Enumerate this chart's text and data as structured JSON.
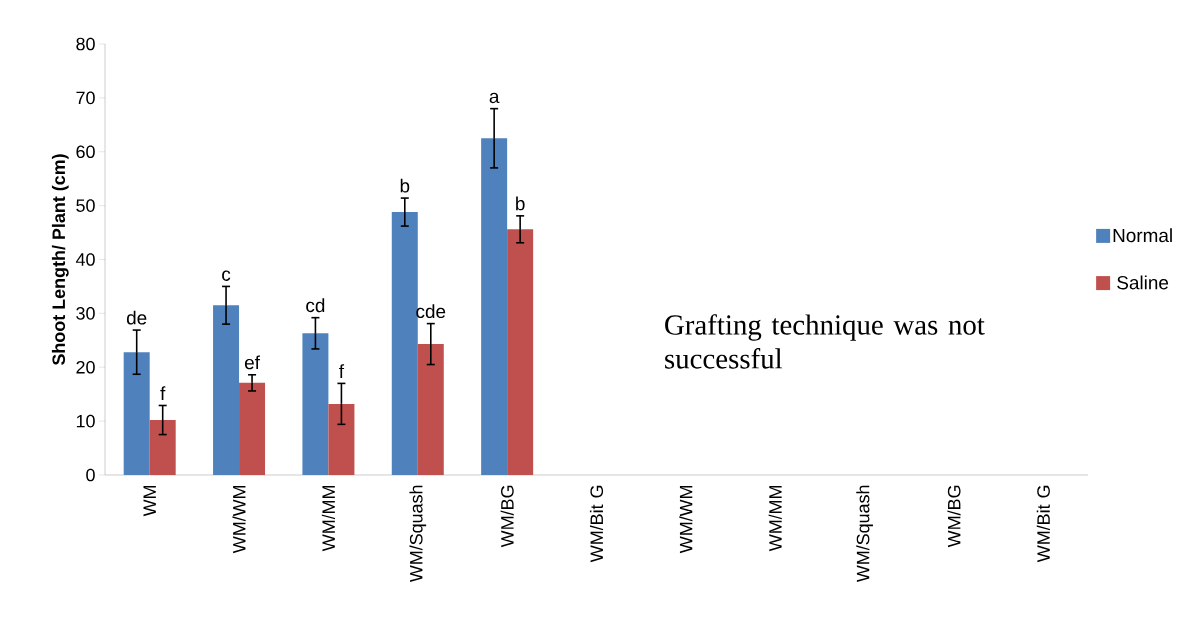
{
  "chart_data": {
    "type": "bar",
    "ylabel": "Shoot Length/ Plant (cm)",
    "categories": [
      "WM",
      "WM/WM",
      "WM/MM",
      "WM/Squash",
      "WM/BG",
      "WM/Bit G",
      "WM/WM",
      "WM/MM",
      "WM/Squash",
      "WM/BG",
      "WM/Bit G"
    ],
    "series": [
      {
        "name": "Normal",
        "color": "#4f81bd",
        "values": [
          22.8,
          31.5,
          26.3,
          48.8,
          62.5,
          null,
          null,
          null,
          null,
          null,
          null
        ],
        "errors": [
          4.1,
          3.5,
          2.9,
          2.6,
          5.5,
          null,
          null,
          null,
          null,
          null,
          null
        ],
        "value_labels": [
          "de",
          "c",
          "cd",
          "b",
          "a",
          null,
          null,
          null,
          null,
          null,
          null
        ]
      },
      {
        "name": "Saline",
        "color": "#c0504d",
        "values": [
          10.2,
          17.1,
          13.2,
          24.3,
          45.6,
          null,
          null,
          null,
          null,
          null,
          null
        ],
        "errors": [
          2.7,
          1.5,
          3.8,
          3.8,
          2.5,
          null,
          null,
          null,
          null,
          null,
          null
        ],
        "value_labels": [
          "f",
          "ef",
          "f",
          "cde",
          "b",
          null,
          null,
          null,
          null,
          null,
          null
        ]
      }
    ],
    "ylim": [
      0,
      80
    ],
    "yticks": [
      0,
      10,
      20,
      30,
      40,
      50,
      60,
      70,
      80
    ],
    "legend": "right",
    "grid": false,
    "annotations": [
      "Grafting technique was not successful"
    ]
  }
}
